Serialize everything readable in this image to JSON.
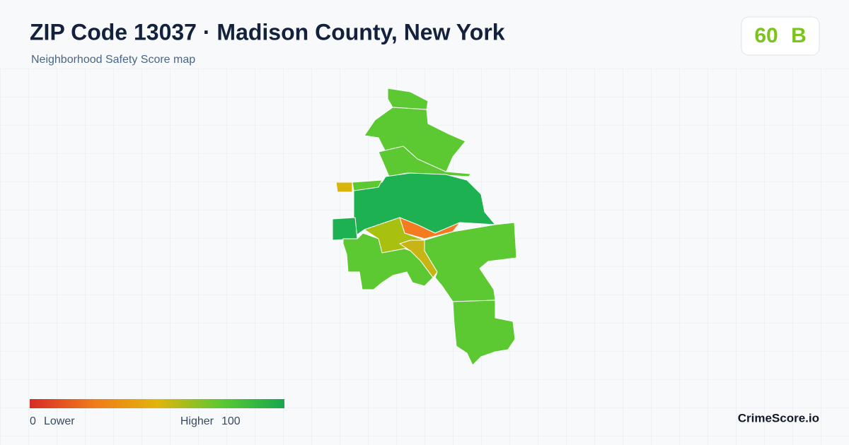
{
  "header": {
    "title": "ZIP Code 13037 · Madison County, New York",
    "subtitle": "Neighborhood Safety Score map"
  },
  "score": {
    "value": 60,
    "grade": "B"
  },
  "legend": {
    "min": 0,
    "min_label": "Lower",
    "max_label": "Higher",
    "max": 100
  },
  "brand": "CrimeScore.io"
}
